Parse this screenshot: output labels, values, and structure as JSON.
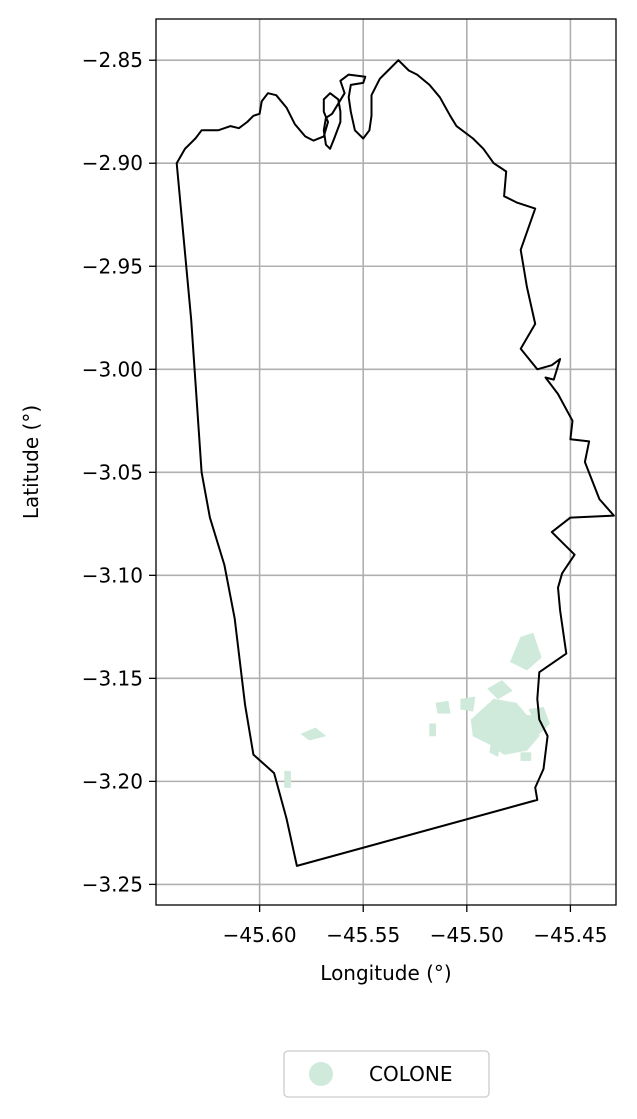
{
  "chart_data": {
    "type": "map",
    "xlabel": "Longitude (°)",
    "ylabel": "Latitude (°)",
    "xlim": [
      -45.65,
      -45.428
    ],
    "ylim": [
      -3.26,
      -2.83
    ],
    "x_ticks": [
      -45.6,
      -45.55,
      -45.5,
      -45.45
    ],
    "x_tick_labels": [
      "−45.60",
      "−45.55",
      "−45.50",
      "−45.45"
    ],
    "y_ticks": [
      -2.85,
      -2.9,
      -2.95,
      -3.0,
      -3.05,
      -3.1,
      -3.15,
      -3.2,
      -3.25
    ],
    "y_tick_labels": [
      "−2.85",
      "−2.90",
      "−2.95",
      "−3.00",
      "−3.05",
      "−3.10",
      "−3.15",
      "−3.20",
      "−3.25"
    ],
    "grid": true,
    "legend": {
      "placement": "bottom-center",
      "entries": [
        {
          "label": "COLONE",
          "color": "#cfeadb"
        }
      ]
    },
    "boundary": {
      "color": "#000000",
      "points": [
        [
          -45.64,
          -2.9
        ],
        [
          -45.636,
          -2.893
        ],
        [
          -45.631,
          -2.888
        ],
        [
          -45.628,
          -2.884
        ],
        [
          -45.62,
          -2.884
        ],
        [
          -45.614,
          -2.882
        ],
        [
          -45.61,
          -2.883
        ],
        [
          -45.606,
          -2.88
        ],
        [
          -45.603,
          -2.877
        ],
        [
          -45.6,
          -2.876
        ],
        [
          -45.599,
          -2.87
        ],
        [
          -45.596,
          -2.866
        ],
        [
          -45.592,
          -2.867
        ],
        [
          -45.587,
          -2.873
        ],
        [
          -45.583,
          -2.881
        ],
        [
          -45.578,
          -2.887
        ],
        [
          -45.574,
          -2.889
        ],
        [
          -45.569,
          -2.887
        ],
        [
          -45.567,
          -2.88
        ],
        [
          -45.569,
          -2.875
        ],
        [
          -45.569,
          -2.869
        ],
        [
          -45.566,
          -2.866
        ],
        [
          -45.562,
          -2.869
        ],
        [
          -45.561,
          -2.875
        ],
        [
          -45.561,
          -2.88
        ],
        [
          -45.564,
          -2.888
        ],
        [
          -45.566,
          -2.893
        ],
        [
          -45.568,
          -2.891
        ],
        [
          -45.569,
          -2.884
        ],
        [
          -45.568,
          -2.878
        ],
        [
          -45.565,
          -2.876
        ],
        [
          -45.559,
          -2.866
        ],
        [
          -45.561,
          -2.86
        ],
        [
          -45.557,
          -2.857
        ],
        [
          -45.549,
          -2.858
        ],
        [
          -45.55,
          -2.861
        ],
        [
          -45.556,
          -2.862
        ],
        [
          -45.557,
          -2.868
        ],
        [
          -45.556,
          -2.875
        ],
        [
          -45.554,
          -2.884
        ],
        [
          -45.55,
          -2.888
        ],
        [
          -45.547,
          -2.884
        ],
        [
          -45.546,
          -2.877
        ],
        [
          -45.546,
          -2.867
        ],
        [
          -45.542,
          -2.859
        ],
        [
          -45.537,
          -2.854
        ],
        [
          -45.533,
          -2.85
        ],
        [
          -45.528,
          -2.855
        ],
        [
          -45.524,
          -2.857
        ],
        [
          -45.518,
          -2.862
        ],
        [
          -45.513,
          -2.868
        ],
        [
          -45.508,
          -2.877
        ],
        [
          -45.505,
          -2.882
        ],
        [
          -45.497,
          -2.888
        ],
        [
          -45.492,
          -2.893
        ],
        [
          -45.487,
          -2.9
        ],
        [
          -45.481,
          -2.904
        ],
        [
          -45.482,
          -2.916
        ],
        [
          -45.476,
          -2.919
        ],
        [
          -45.467,
          -2.922
        ],
        [
          -45.474,
          -2.942
        ],
        [
          -45.471,
          -2.96
        ],
        [
          -45.467,
          -2.978
        ],
        [
          -45.474,
          -2.99
        ],
        [
          -45.466,
          -3.0
        ],
        [
          -45.459,
          -2.998
        ],
        [
          -45.455,
          -2.995
        ],
        [
          -45.458,
          -3.005
        ],
        [
          -45.462,
          -3.004
        ],
        [
          -45.456,
          -3.012
        ],
        [
          -45.449,
          -3.025
        ],
        [
          -45.45,
          -3.034
        ],
        [
          -45.441,
          -3.035
        ],
        [
          -45.443,
          -3.045
        ],
        [
          -45.436,
          -3.063
        ],
        [
          -45.429,
          -3.071
        ],
        [
          -45.45,
          -3.072
        ],
        [
          -45.459,
          -3.079
        ],
        [
          -45.448,
          -3.09
        ],
        [
          -45.454,
          -3.099
        ],
        [
          -45.456,
          -3.106
        ],
        [
          -45.455,
          -3.117
        ],
        [
          -45.452,
          -3.138
        ],
        [
          -45.465,
          -3.147
        ],
        [
          -45.466,
          -3.16
        ],
        [
          -45.465,
          -3.17
        ],
        [
          -45.461,
          -3.178
        ],
        [
          -45.463,
          -3.194
        ],
        [
          -45.467,
          -3.203
        ],
        [
          -45.466,
          -3.209
        ],
        [
          -45.582,
          -3.241
        ],
        [
          -45.587,
          -3.218
        ],
        [
          -45.593,
          -3.196
        ],
        [
          -45.603,
          -3.187
        ],
        [
          -45.607,
          -3.163
        ],
        [
          -45.612,
          -3.121
        ],
        [
          -45.617,
          -3.095
        ],
        [
          -45.624,
          -3.072
        ],
        [
          -45.628,
          -3.05
        ],
        [
          -45.633,
          -2.976
        ]
      ]
    },
    "features": [
      {
        "label": "COLONE",
        "color": "#cfeadb",
        "points": [
          [
            -45.479,
            -3.142
          ],
          [
            -45.474,
            -3.13
          ],
          [
            -45.468,
            -3.128
          ],
          [
            -45.464,
            -3.14
          ],
          [
            -45.471,
            -3.146
          ]
        ]
      },
      {
        "label": "COLONE",
        "color": "#cfeadb",
        "points": [
          [
            -45.498,
            -3.17
          ],
          [
            -45.487,
            -3.16
          ],
          [
            -45.476,
            -3.162
          ],
          [
            -45.471,
            -3.168
          ],
          [
            -45.467,
            -3.168
          ],
          [
            -45.465,
            -3.178
          ],
          [
            -45.471,
            -3.185
          ],
          [
            -45.482,
            -3.187
          ],
          [
            -45.489,
            -3.182
          ],
          [
            -45.497,
            -3.178
          ]
        ]
      },
      {
        "label": "COLONE",
        "color": "#cfeadb",
        "points": [
          [
            -45.47,
            -3.165
          ],
          [
            -45.463,
            -3.164
          ],
          [
            -45.46,
            -3.172
          ],
          [
            -45.465,
            -3.177
          ]
        ]
      },
      {
        "label": "COLONE",
        "color": "#cfeadb",
        "points": [
          [
            -45.49,
            -3.155
          ],
          [
            -45.483,
            -3.151
          ],
          [
            -45.478,
            -3.156
          ],
          [
            -45.485,
            -3.16
          ]
        ]
      },
      {
        "label": "COLONE",
        "color": "#cfeadb",
        "points": [
          [
            -45.503,
            -3.16
          ],
          [
            -45.496,
            -3.159
          ],
          [
            -45.497,
            -3.166
          ],
          [
            -45.503,
            -3.165
          ]
        ]
      },
      {
        "label": "COLONE",
        "color": "#cfeadb",
        "points": [
          [
            -45.515,
            -3.162
          ],
          [
            -45.509,
            -3.161
          ],
          [
            -45.508,
            -3.167
          ],
          [
            -45.514,
            -3.167
          ]
        ]
      },
      {
        "label": "COLONE",
        "color": "#cfeadb",
        "points": [
          [
            -45.488,
            -3.18
          ],
          [
            -45.484,
            -3.182
          ],
          [
            -45.485,
            -3.188
          ],
          [
            -45.489,
            -3.186
          ]
        ]
      },
      {
        "label": "COLONE",
        "color": "#cfeadb",
        "points": [
          [
            -45.58,
            -3.177
          ],
          [
            -45.573,
            -3.174
          ],
          [
            -45.568,
            -3.178
          ],
          [
            -45.576,
            -3.18
          ]
        ]
      },
      {
        "label": "COLONE",
        "color": "#cfeadb",
        "points": [
          [
            -45.588,
            -3.195
          ],
          [
            -45.585,
            -3.195
          ],
          [
            -45.585,
            -3.203
          ],
          [
            -45.588,
            -3.203
          ]
        ]
      },
      {
        "label": "COLONE",
        "color": "#cfeadb",
        "points": [
          [
            -45.518,
            -3.172
          ],
          [
            -45.515,
            -3.172
          ],
          [
            -45.515,
            -3.178
          ],
          [
            -45.518,
            -3.178
          ]
        ]
      },
      {
        "label": "COLONE",
        "color": "#cfeadb",
        "points": [
          [
            -45.474,
            -3.186
          ],
          [
            -45.469,
            -3.186
          ],
          [
            -45.469,
            -3.19
          ],
          [
            -45.474,
            -3.19
          ]
        ]
      }
    ]
  }
}
